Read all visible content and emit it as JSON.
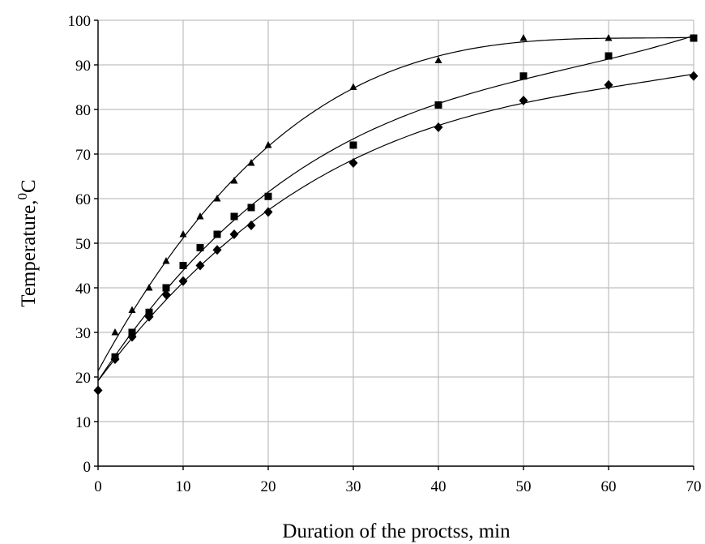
{
  "chart_data": {
    "type": "scatter",
    "title": "",
    "xlabel": "Duration of the proctss, min",
    "ylabel_main": "Temperature,",
    "ylabel_sup": "0",
    "ylabel_unit": "C",
    "xlim": [
      0,
      70
    ],
    "ylim": [
      0,
      100
    ],
    "xticks": [
      "0",
      "10",
      "20",
      "30",
      "40",
      "50",
      "60",
      "70"
    ],
    "yticks": [
      "0",
      "10",
      "20",
      "30",
      "40",
      "50",
      "60",
      "70",
      "80",
      "90",
      "100"
    ],
    "grid": true,
    "legend": "none",
    "series": [
      {
        "marker": "triangle",
        "trendline": "polynomial",
        "x": [
          2,
          4,
          6,
          8,
          10,
          12,
          14,
          16,
          18,
          20,
          30,
          40,
          50,
          60,
          70
        ],
        "y": [
          30,
          35,
          40,
          46,
          52,
          56,
          60,
          64,
          68,
          72,
          85,
          91,
          96,
          96,
          96
        ]
      },
      {
        "marker": "square",
        "trendline": "polynomial",
        "x": [
          2,
          4,
          6,
          8,
          10,
          12,
          14,
          16,
          18,
          20,
          30,
          40,
          50,
          60,
          70
        ],
        "y": [
          24.5,
          30,
          34.5,
          40,
          45,
          49,
          52,
          56,
          58,
          60.5,
          72,
          81,
          87.5,
          92,
          96
        ]
      },
      {
        "marker": "diamond",
        "trendline": "polynomial",
        "x": [
          0,
          2,
          4,
          6,
          8,
          10,
          12,
          14,
          16,
          18,
          20,
          30,
          40,
          50,
          60,
          70
        ],
        "y": [
          17,
          24,
          29,
          33.5,
          38.5,
          41.5,
          45,
          48.5,
          52,
          54,
          57,
          68,
          76,
          82,
          85.5,
          87.5
        ]
      }
    ]
  }
}
